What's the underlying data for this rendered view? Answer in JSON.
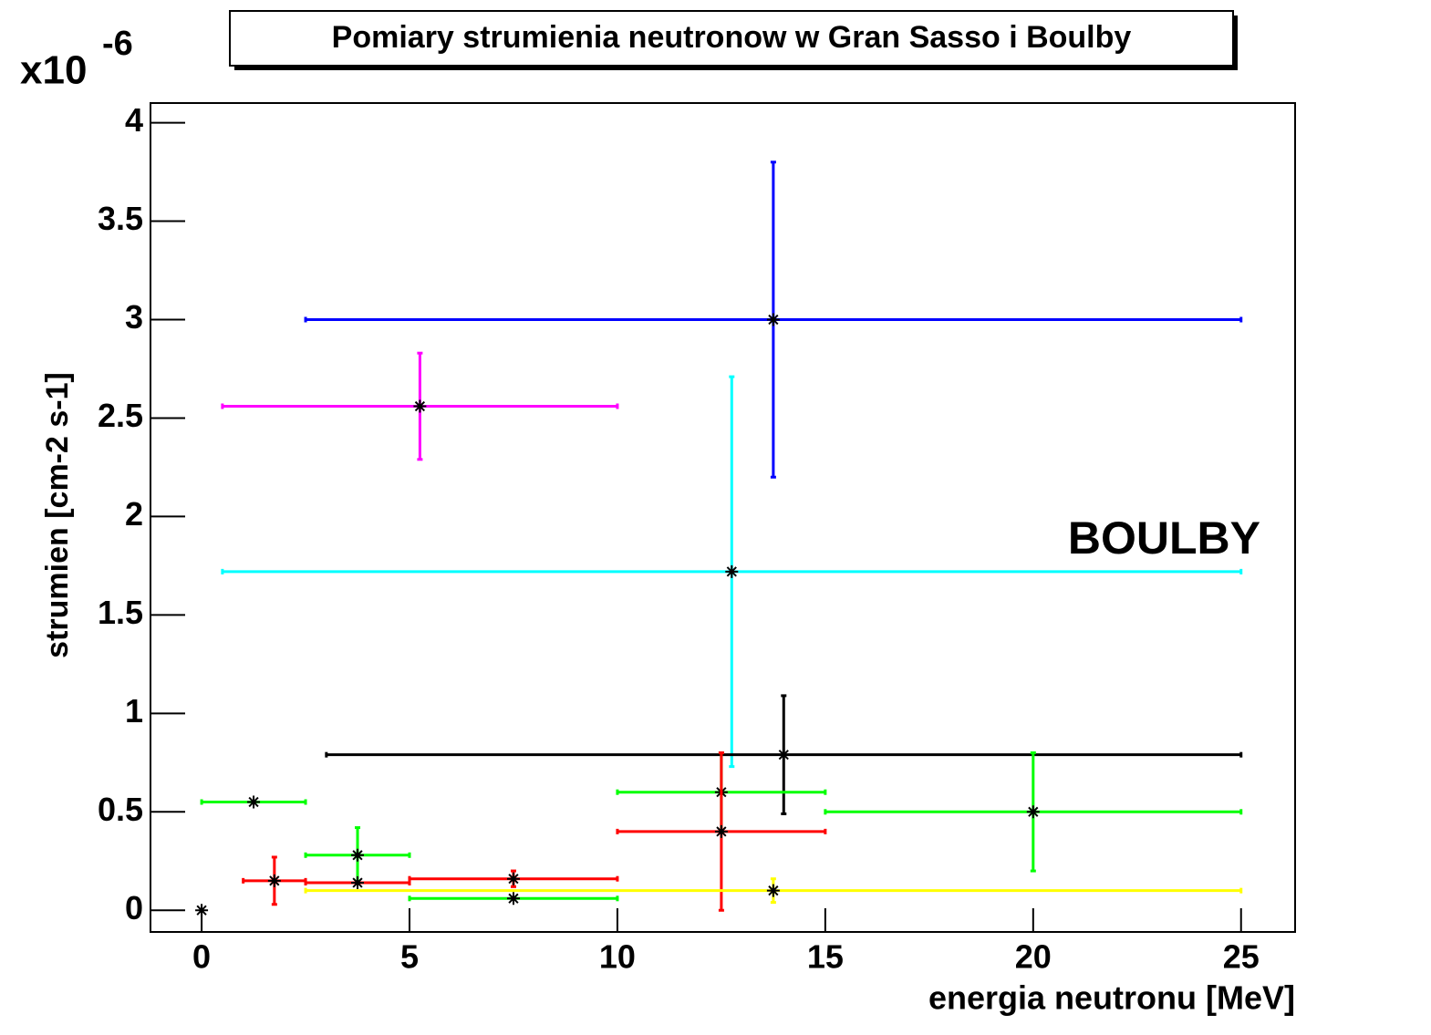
{
  "chart_data": {
    "type": "errorbar",
    "title": "Pomiary strumienia neutronow w Gran Sasso i Boulby",
    "x_label": "energia neutronu [MeV]",
    "y_label": "strumien [cm-2 s-1]",
    "y_exponent": {
      "base": "x10",
      "power": "-6"
    },
    "annotation": {
      "text": "BOULBY",
      "color": "#00e5ee"
    },
    "xlim": [
      -1.23,
      26.3
    ],
    "ylim": [
      -0.11,
      4.1
    ],
    "xticks": [
      0,
      5,
      10,
      15,
      20,
      25
    ],
    "yticks": [
      0,
      0.5,
      1,
      1.5,
      2,
      2.5,
      3,
      3.5,
      4
    ],
    "series": [
      {
        "color": "#0000ff",
        "x": [
          13.75
        ],
        "values": [
          3.0
        ],
        "xerr": [
          11.25
        ],
        "yerr": [
          0.8
        ]
      },
      {
        "color": "#ff00ff",
        "x": [
          5.25
        ],
        "values": [
          2.56
        ],
        "xerr": [
          4.75
        ],
        "yerr": [
          0.27
        ]
      },
      {
        "color": "#00ffff",
        "x": [
          12.75
        ],
        "values": [
          1.72
        ],
        "xerr": [
          12.25
        ],
        "yerr": [
          0.99
        ]
      },
      {
        "color": "#000000",
        "x": [
          14,
          0
        ],
        "values": [
          0.79,
          0
        ],
        "xerr": [
          11,
          0
        ],
        "yerr": [
          0.3,
          0
        ]
      },
      {
        "color": "#00ff00",
        "x": [
          1.25,
          3.75,
          7.5,
          12.5,
          20
        ],
        "values": [
          0.55,
          0.28,
          0.06,
          0.6,
          0.5
        ],
        "xerr": [
          1.25,
          1.25,
          2.5,
          2.5,
          5
        ],
        "yerr": [
          0,
          0.14,
          0,
          0.2,
          0.3
        ]
      },
      {
        "color": "#ff0000",
        "x": [
          1.75,
          3.75,
          7.5,
          12.5
        ],
        "values": [
          0.15,
          0.14,
          0.16,
          0.4
        ],
        "xerr": [
          0.75,
          1.25,
          2.5,
          2.5
        ],
        "yerr": [
          0.12,
          0,
          0.04,
          0.4
        ]
      },
      {
        "color": "#ffff00",
        "x": [
          13.75
        ],
        "values": [
          0.1
        ],
        "xerr": [
          11.25
        ],
        "yerr": [
          0.06
        ]
      }
    ]
  }
}
